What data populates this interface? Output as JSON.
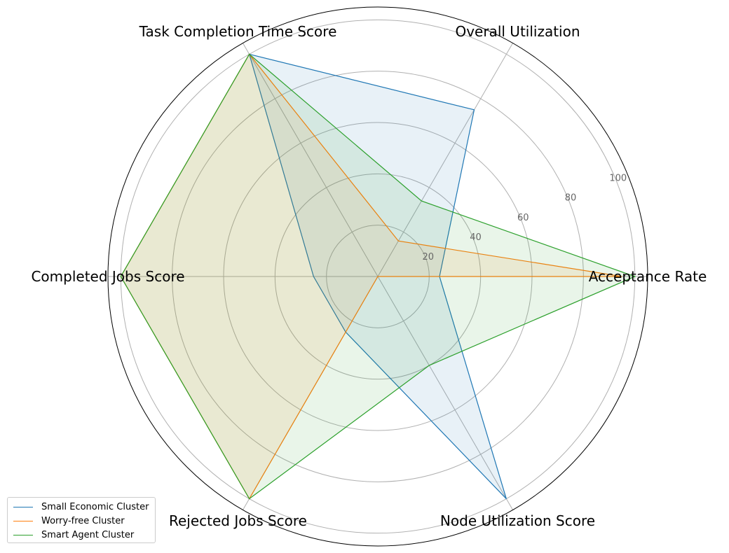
{
  "chart_data": {
    "type": "radar",
    "axes": [
      "Acceptance Rate",
      "Overall Utilization",
      "Task Completion Time Score",
      "Completed Jobs Score",
      "Rejected Jobs Score",
      "Node Utilization Score"
    ],
    "rlim": [
      0,
      105
    ],
    "radial_ticks": [
      20,
      40,
      60,
      80,
      100
    ],
    "radial_tick_labels": [
      "20",
      "40",
      "60",
      "80",
      "100"
    ],
    "grid": true,
    "legend_position": "lower-left",
    "series": [
      {
        "name": "Small Economic Cluster",
        "color": "#1f77b4",
        "values": [
          24,
          75,
          100,
          25,
          25,
          100
        ]
      },
      {
        "name": "Worry-free Cluster",
        "color": "#ff7f0e",
        "values": [
          95,
          16,
          100,
          100,
          100,
          0
        ]
      },
      {
        "name": "Smart Agent Cluster",
        "color": "#2ca02c",
        "values": [
          100,
          34,
          100,
          100,
          100,
          40
        ]
      }
    ]
  }
}
